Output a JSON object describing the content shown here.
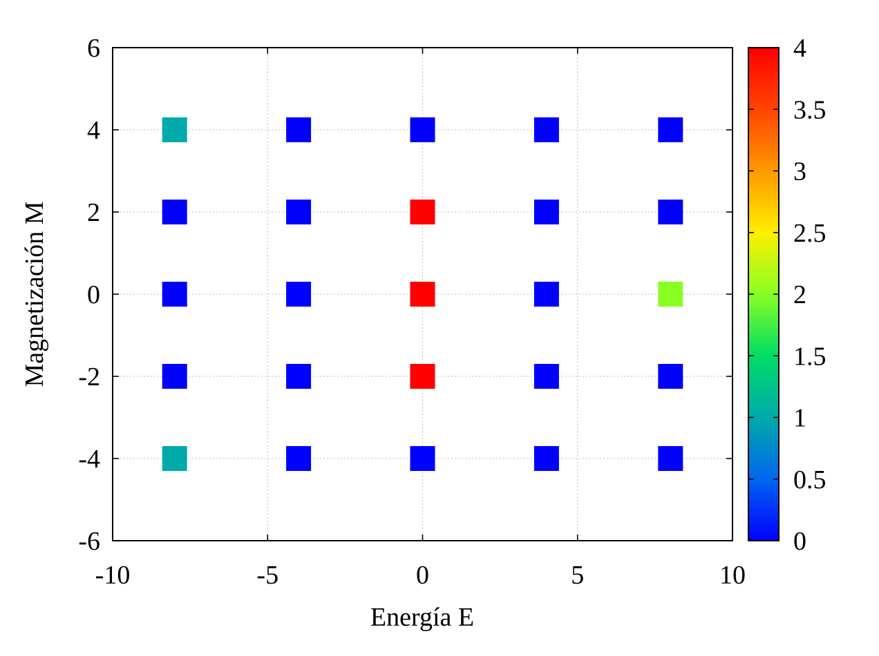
{
  "chart_data": {
    "type": "heatmap",
    "title": "",
    "xlabel": "Energía E",
    "ylabel": "Magnetización M",
    "xlim": [
      -10,
      10
    ],
    "ylim": [
      -6,
      6
    ],
    "xticks": [
      -10,
      -5,
      0,
      5,
      10
    ],
    "yticks": [
      -6,
      -4,
      -2,
      0,
      2,
      4,
      6
    ],
    "grid": true,
    "colorbar": {
      "range": [
        0,
        4
      ],
      "ticks": [
        0,
        0.5,
        1,
        1.5,
        2,
        2.5,
        3,
        3.5,
        4
      ],
      "tick_labels": [
        "0",
        "0.5",
        "1",
        "1.5",
        "2",
        "2.5",
        "3",
        "3.5",
        "4"
      ],
      "palette": [
        "#0000ff",
        "#0066ee",
        "#00aaaa",
        "#00dd66",
        "#88ff22",
        "#ffee00",
        "#ff9900",
        "#ff4400",
        "#ff0000"
      ]
    },
    "points": [
      {
        "x": -8,
        "y": 4,
        "value": 1
      },
      {
        "x": -4,
        "y": 4,
        "value": 0
      },
      {
        "x": 0,
        "y": 4,
        "value": 0
      },
      {
        "x": 4,
        "y": 4,
        "value": 0
      },
      {
        "x": 8,
        "y": 4,
        "value": 0
      },
      {
        "x": -8,
        "y": 2,
        "value": 0
      },
      {
        "x": -4,
        "y": 2,
        "value": 0
      },
      {
        "x": 0,
        "y": 2,
        "value": 4
      },
      {
        "x": 4,
        "y": 2,
        "value": 0
      },
      {
        "x": 8,
        "y": 2,
        "value": 0
      },
      {
        "x": -8,
        "y": 0,
        "value": 0
      },
      {
        "x": -4,
        "y": 0,
        "value": 0
      },
      {
        "x": 0,
        "y": 0,
        "value": 4
      },
      {
        "x": 4,
        "y": 0,
        "value": 0
      },
      {
        "x": 8,
        "y": 0,
        "value": 2
      },
      {
        "x": -8,
        "y": -2,
        "value": 0
      },
      {
        "x": -4,
        "y": -2,
        "value": 0
      },
      {
        "x": 0,
        "y": -2,
        "value": 4
      },
      {
        "x": 4,
        "y": -2,
        "value": 0
      },
      {
        "x": 8,
        "y": -2,
        "value": 0
      },
      {
        "x": -8,
        "y": -4,
        "value": 1
      },
      {
        "x": -4,
        "y": -4,
        "value": 0
      },
      {
        "x": 0,
        "y": -4,
        "value": 0
      },
      {
        "x": 4,
        "y": -4,
        "value": 0
      },
      {
        "x": 8,
        "y": -4,
        "value": 0
      }
    ]
  }
}
